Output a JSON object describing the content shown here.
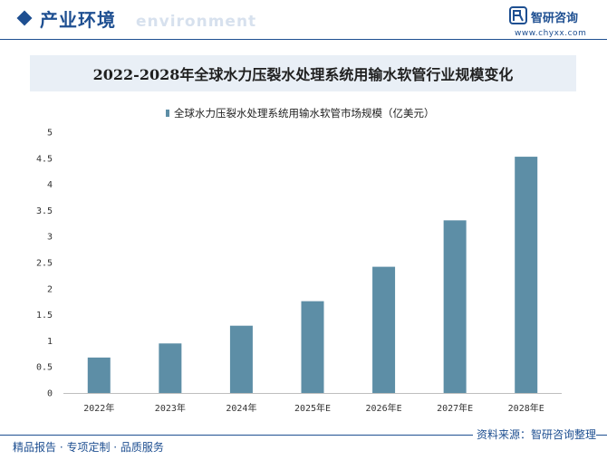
{
  "header": {
    "section_title": "产业环境",
    "section_subtitle": "environment",
    "logo_name": "智研咨询",
    "logo_url": "www.chyxx.com"
  },
  "footer": {
    "slogan": "精品报告 · 专项定制 · 品质服务",
    "source": "资料来源：智研咨询整理"
  },
  "colors": {
    "brand": "#1e4f91",
    "bar": "#5d8ea6",
    "title_bg": "#e9eff6"
  },
  "chart_data": {
    "type": "bar",
    "title": "2022-2028年全球水力压裂水处理系统用输水软管行业规模变化",
    "categories": [
      "2022年",
      "2023年",
      "2024年",
      "2025年E",
      "2026年E",
      "2027年E",
      "2028年E"
    ],
    "series": [
      {
        "name": "全球水力压裂水处理系统用输水软管市场规模（亿美元）",
        "values": [
          0.68,
          0.95,
          1.29,
          1.76,
          2.42,
          3.31,
          4.53
        ]
      }
    ],
    "ylim": [
      0,
      5
    ],
    "yticks": [
      "0",
      "0.5",
      "1",
      "1.5",
      "2",
      "2.5",
      "3",
      "3.5",
      "4",
      "4.5",
      "5"
    ],
    "xlabel": "",
    "ylabel": "",
    "legend": "top-left"
  }
}
